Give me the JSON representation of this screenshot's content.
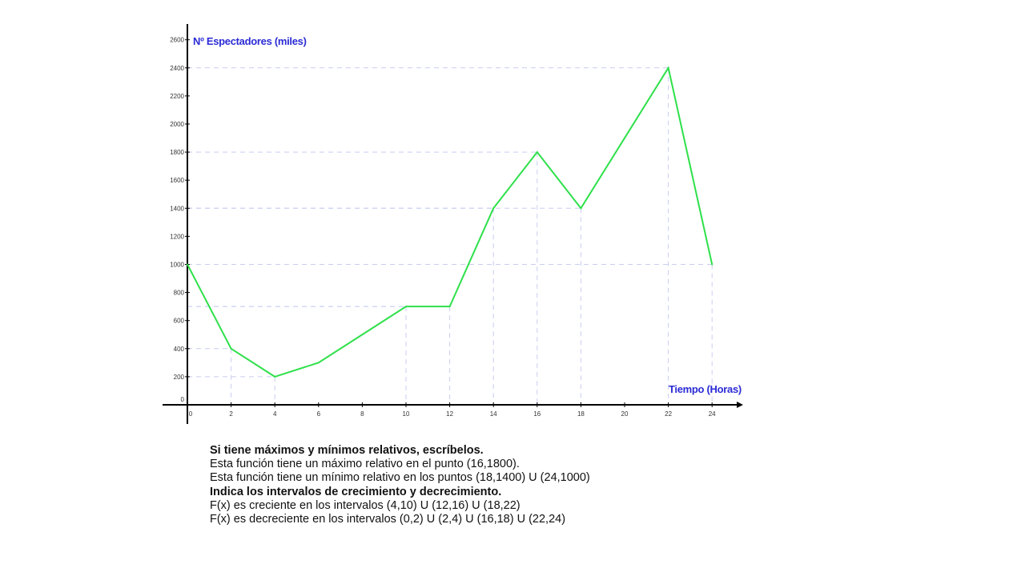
{
  "chart_data": {
    "type": "line",
    "title": "",
    "ylabel": "Nº Espectadores (miles)",
    "xlabel": "Tiempo (Horas)",
    "xlim": [
      0,
      25
    ],
    "ylim": [
      0,
      2650
    ],
    "x_ticks": [
      0,
      2,
      4,
      6,
      8,
      10,
      12,
      14,
      16,
      18,
      20,
      22,
      24
    ],
    "y_ticks": [
      0,
      200,
      400,
      600,
      800,
      1000,
      1200,
      1400,
      1600,
      1800,
      2000,
      2200,
      2400,
      2600
    ],
    "grid": "dashed reference lines to key points",
    "series": [
      {
        "color": "#2ee04a",
        "x": [
          0,
          2,
          4,
          6,
          8,
          10,
          12,
          14,
          16,
          18,
          20,
          22,
          24
        ],
        "y": [
          1000,
          400,
          200,
          300,
          500,
          700,
          700,
          1400,
          1800,
          1400,
          1900,
          2400,
          1000
        ]
      }
    ],
    "reference_points": [
      [
        2,
        400
      ],
      [
        4,
        200
      ],
      [
        10,
        700
      ],
      [
        12,
        700
      ],
      [
        14,
        1400
      ],
      [
        16,
        1800
      ],
      [
        18,
        1400
      ],
      [
        22,
        2400
      ],
      [
        24,
        1000
      ]
    ],
    "reference_colors": {
      "line": "#2ee04a",
      "guide": "#c8cdf0",
      "axis": "#000000",
      "label": "#2b2bd6"
    }
  },
  "text": {
    "line1": "Si tiene máximos y mínimos relativos, escríbelos.",
    "line2": "Esta función tiene un máximo relativo en el punto (16,1800).",
    "line3": "Esta función tiene un mínimo relativo en los puntos (18,1400) U (24,1000)",
    "line4": "Indica los intervalos de crecimiento  y decrecimiento.",
    "line5": "F(x) es creciente en los intervalos (4,10) U (12,16) U (18,22)",
    "line6": "F(x) es decreciente en los intervalos (0,2) U (2,4) U (16,18) U (22,24)"
  }
}
